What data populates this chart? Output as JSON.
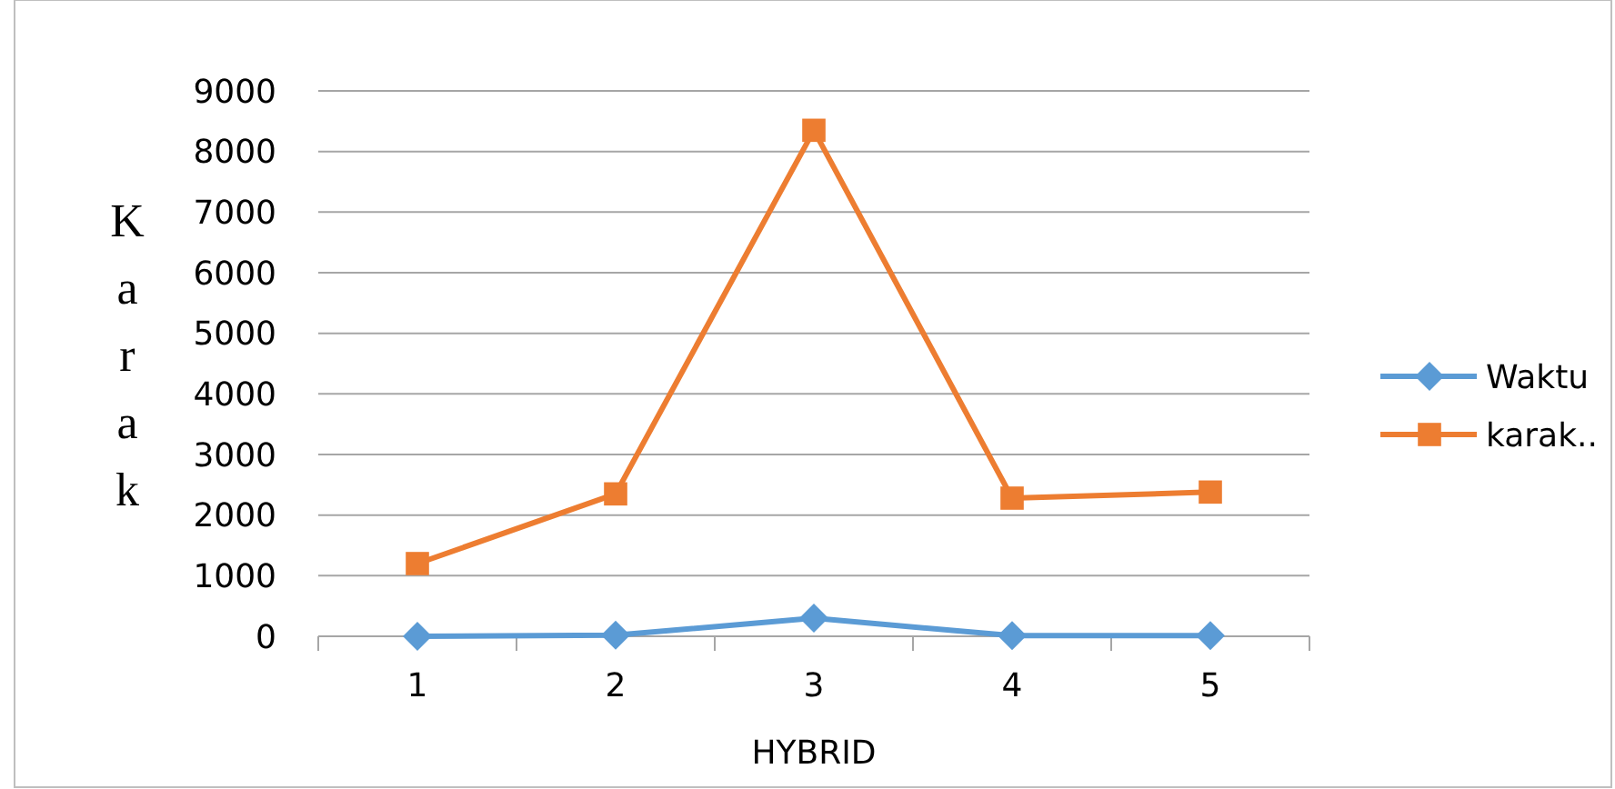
{
  "chart_data": {
    "type": "line",
    "xlabel": "HYBRID",
    "ylabel": "Karak",
    "categories": [
      "1",
      "2",
      "3",
      "4",
      "5"
    ],
    "series": [
      {
        "name": "Waktu",
        "color": "#5b9bd5",
        "values": [
          0,
          20,
          300,
          10,
          10
        ],
        "marker": "diamond"
      },
      {
        "name": "karak..",
        "color": "#ed7d31",
        "values": [
          1200,
          2350,
          8350,
          2280,
          2380
        ],
        "marker": "square"
      }
    ],
    "ylim": [
      0,
      9000
    ],
    "yticks": [
      0,
      1000,
      2000,
      3000,
      4000,
      5000,
      6000,
      7000,
      8000,
      9000
    ],
    "grid": "y",
    "legend": "right"
  }
}
